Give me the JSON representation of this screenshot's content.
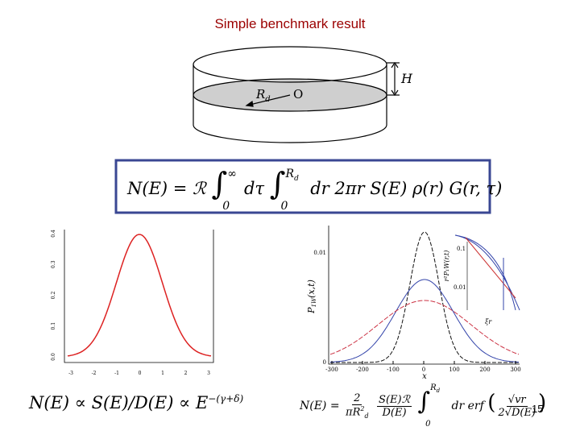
{
  "title": "Simple benchmark result",
  "geometry": {
    "radius": "R",
    "radius_sub": "d",
    "origin": "O",
    "height": "H"
  },
  "equation_main": {
    "lhs": "N(E) = ℛ",
    "int1": "∫",
    "int1_lower": "0",
    "int1_upper": "∞",
    "d1": "dτ",
    "int2": "∫",
    "int2_lower": "0",
    "int2_upper": "R",
    "int2_upper_sub": "d",
    "rest": "dr 2πr S(E) ρ(r) G(r, τ)"
  },
  "left_plot": {
    "xticks": [
      "-3",
      "-2",
      "-1",
      "0",
      "1",
      "2",
      "3"
    ],
    "yticks": [
      "0.0",
      "0.1",
      "0.2",
      "0.3",
      "0.4"
    ]
  },
  "right_plot": {
    "xticks": [
      "-300",
      "-200",
      "-100",
      "0",
      "100",
      "200",
      "300"
    ],
    "yticks": [
      "0",
      "0.01"
    ],
    "xlabel": "x",
    "ylabel": "P",
    "ylabel_sub": "1W",
    "ylabel_args": "(x,t)",
    "inset": {
      "yticks": [
        "0.1",
        "0.01"
      ],
      "ylabel": "r²P₁W(r,t)",
      "xlabel": "ξr"
    }
  },
  "equation_power": {
    "text": "N(E) ∝ S(E)/D(E) ∝ E",
    "sup": "−(γ+δ)"
  },
  "equation_erf": {
    "lhs": "N(E) =",
    "f1_num": "2",
    "f1_den": "πR",
    "f1_den_sup": "2",
    "f1_den_sub": "d",
    "f2_num": "S(E)ℛ",
    "f2_den": "D(E)",
    "int": "∫",
    "int_lower": "0",
    "int_upper": "R",
    "int_upper_sub": "d",
    "mid": "dr erf",
    "f3_num": "√vr",
    "f3_den": "2√D(E)"
  },
  "page_number": "15"
}
